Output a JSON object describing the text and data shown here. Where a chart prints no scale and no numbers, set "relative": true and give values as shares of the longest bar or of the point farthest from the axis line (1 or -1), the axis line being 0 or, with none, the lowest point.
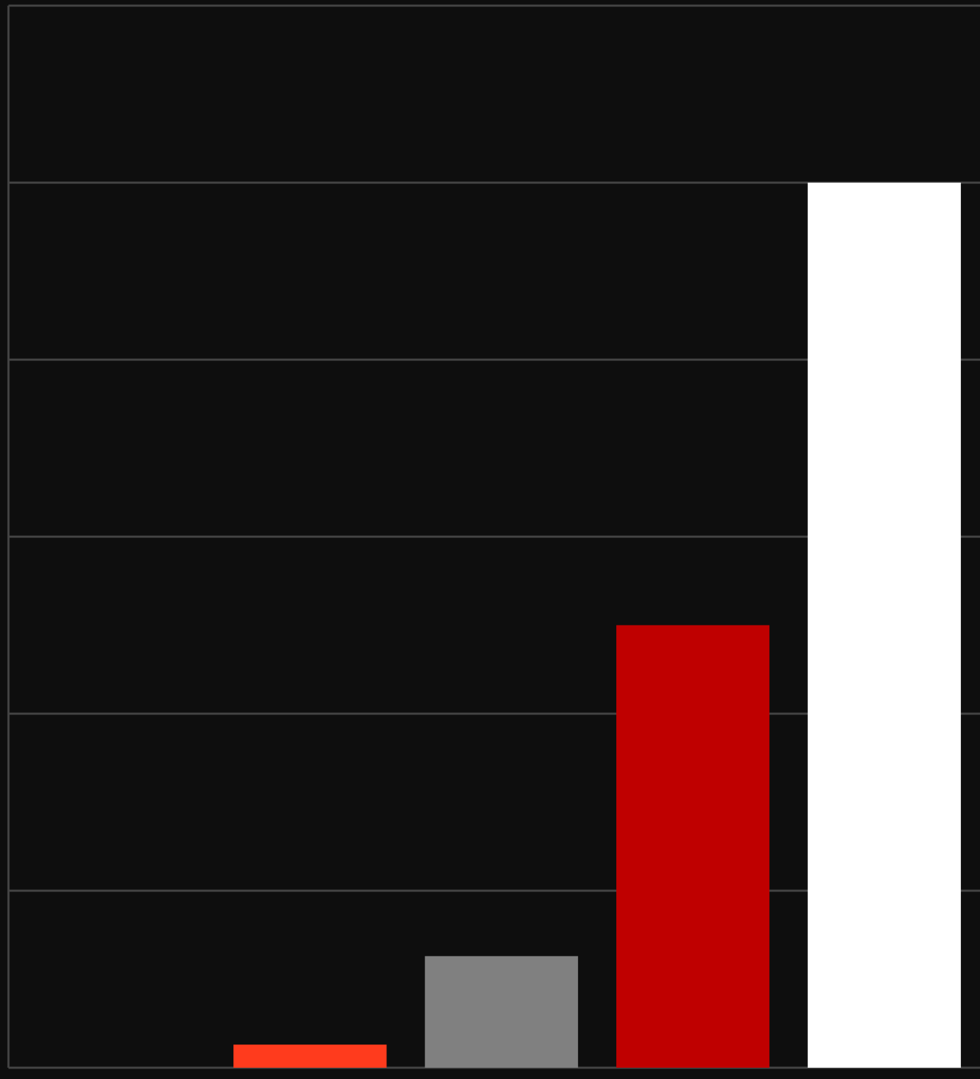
{
  "chart_data": {
    "type": "bar",
    "relative": true,
    "categories": [
      null,
      null,
      null,
      null
    ],
    "values": [
      0.026,
      0.126,
      0.5,
      1
    ],
    "colors": [
      "#ff3b1d",
      "#808080",
      "#bf0000",
      "#ffffff"
    ],
    "grid": "y"
  }
}
